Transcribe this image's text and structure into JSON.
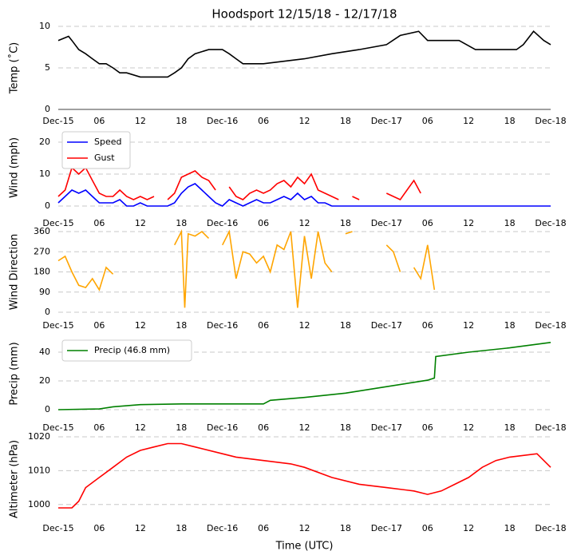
{
  "chart_data": [
    {
      "type": "line",
      "title": "Hoodsport 12/15/18 - 12/17/18",
      "ylabel": "Temp (˚C)",
      "xlim": [
        0,
        72
      ],
      "ylim": [
        0,
        10
      ],
      "yticks": [
        0,
        5,
        10
      ],
      "grid": true,
      "xticks": [
        {
          "value": 0,
          "label": "Dec-15"
        },
        {
          "value": 6,
          "label": "06"
        },
        {
          "value": 12,
          "label": "12"
        },
        {
          "value": 18,
          "label": "18"
        },
        {
          "value": 24,
          "label": "Dec-16"
        },
        {
          "value": 30,
          "label": "06"
        },
        {
          "value": 36,
          "label": "12"
        },
        {
          "value": 42,
          "label": "18"
        },
        {
          "value": 48,
          "label": "Dec-17"
        },
        {
          "value": 54,
          "label": "06"
        },
        {
          "value": 60,
          "label": "12"
        },
        {
          "value": 66,
          "label": "18"
        },
        {
          "value": 72,
          "label": "Dec-18"
        }
      ],
      "series": [
        {
          "name": "Temp",
          "color": "#000000",
          "x": [
            0,
            1.5,
            2,
            3,
            4,
            5,
            6,
            7,
            8,
            9,
            10,
            12,
            16,
            17,
            18,
            19,
            20,
            22,
            24,
            25,
            26,
            27,
            30,
            36,
            40,
            44,
            48,
            50,
            52.7,
            54,
            58.6,
            61,
            67,
            68,
            69.5,
            71,
            72
          ],
          "values": [
            8.3,
            8.8,
            8.3,
            7.2,
            6.7,
            6.1,
            5.5,
            5.5,
            5.0,
            4.4,
            4.4,
            3.9,
            3.9,
            4.4,
            5.0,
            6.1,
            6.7,
            7.2,
            7.2,
            6.7,
            6.1,
            5.5,
            5.5,
            6.1,
            6.7,
            7.2,
            7.8,
            8.9,
            9.4,
            8.3,
            8.3,
            7.2,
            7.2,
            7.8,
            9.4,
            8.3,
            7.8
          ]
        }
      ]
    },
    {
      "type": "line",
      "ylabel": "Wind (mph)",
      "legend": "upper left",
      "xlim": [
        0,
        72
      ],
      "ylim": [
        0,
        24
      ],
      "yticks": [
        0,
        10,
        20
      ],
      "grid": true,
      "xticks": [
        {
          "value": 0,
          "label": "Dec-15"
        },
        {
          "value": 6,
          "label": "06"
        },
        {
          "value": 12,
          "label": "12"
        },
        {
          "value": 18,
          "label": "18"
        },
        {
          "value": 24,
          "label": "Dec-16"
        },
        {
          "value": 30,
          "label": "06"
        },
        {
          "value": 36,
          "label": "12"
        },
        {
          "value": 42,
          "label": "18"
        },
        {
          "value": 48,
          "label": "Dec-17"
        },
        {
          "value": 54,
          "label": "06"
        },
        {
          "value": 60,
          "label": "12"
        },
        {
          "value": 66,
          "label": "18"
        },
        {
          "value": 72,
          "label": "Dec-18"
        }
      ],
      "series": [
        {
          "name": "Speed",
          "color": "#0000ff",
          "x": [
            0,
            1,
            2,
            3,
            4,
            5,
            6,
            7,
            8,
            9,
            10,
            11,
            12,
            13,
            14,
            15,
            16,
            17,
            18,
            19,
            20,
            21,
            22,
            23,
            24,
            25,
            26,
            27,
            28,
            29,
            30,
            31,
            32,
            33,
            34,
            35,
            36,
            37,
            38,
            39,
            40,
            41,
            48,
            56,
            64,
            72
          ],
          "values": [
            1,
            3,
            5,
            4,
            5,
            3,
            1,
            1,
            1,
            2,
            0,
            0,
            1,
            0,
            0,
            0,
            0,
            1,
            4,
            6,
            7,
            5,
            3,
            1,
            0,
            2,
            1,
            0,
            1,
            2,
            1,
            1,
            2,
            3,
            2,
            4,
            2,
            3,
            1,
            1,
            0,
            0,
            0,
            0,
            0,
            0
          ]
        },
        {
          "name": "Gust",
          "color": "#ff0000",
          "x": [
            0,
            1,
            2,
            3,
            4,
            5,
            6,
            7,
            8,
            9,
            10,
            11,
            12,
            13,
            14,
            15,
            16,
            17,
            18,
            19,
            20,
            21,
            22,
            23,
            24,
            25,
            26,
            27,
            28,
            29,
            30,
            31,
            32,
            33,
            34,
            35,
            36,
            37,
            38,
            39,
            40,
            41,
            42,
            43,
            44,
            45,
            46,
            47,
            48,
            49,
            50,
            51,
            52,
            53,
            54
          ],
          "values": [
            3,
            5,
            12,
            10,
            12,
            8,
            4,
            3,
            3,
            5,
            3,
            2,
            3,
            2,
            3,
            null,
            2,
            4,
            9,
            10,
            11,
            9,
            8,
            5,
            null,
            6,
            3,
            2,
            4,
            5,
            4,
            5,
            7,
            8,
            6,
            9,
            7,
            10,
            5,
            4,
            3,
            2,
            null,
            3,
            2,
            null,
            2,
            null,
            4,
            3,
            2,
            5,
            8,
            4,
            null
          ]
        }
      ]
    },
    {
      "type": "line",
      "ylabel": "Wind Direction",
      "xlim": [
        0,
        72
      ],
      "ylim": [
        0,
        360
      ],
      "yticks": [
        0,
        90,
        180,
        270,
        360
      ],
      "grid": true,
      "xticks": [
        {
          "value": 0,
          "label": "Dec-15"
        },
        {
          "value": 6,
          "label": "06"
        },
        {
          "value": 12,
          "label": "12"
        },
        {
          "value": 18,
          "label": "18"
        },
        {
          "value": 24,
          "label": "Dec-16"
        },
        {
          "value": 30,
          "label": "06"
        },
        {
          "value": 36,
          "label": "12"
        },
        {
          "value": 42,
          "label": "18"
        },
        {
          "value": 48,
          "label": "Dec-17"
        },
        {
          "value": 54,
          "label": "06"
        },
        {
          "value": 60,
          "label": "12"
        },
        {
          "value": 66,
          "label": "18"
        },
        {
          "value": 72,
          "label": "Dec-18"
        }
      ],
      "series": [
        {
          "name": "Direction",
          "color": "#ffa500",
          "x": [
            0,
            1,
            2,
            3,
            4,
            5,
            6,
            7,
            8,
            9,
            10,
            11,
            12,
            13,
            14,
            15,
            16,
            17,
            18,
            18.5,
            19,
            20,
            21,
            22,
            23,
            24,
            25,
            26,
            27,
            28,
            29,
            30,
            31,
            32,
            33,
            34,
            35,
            36,
            37,
            38,
            39,
            40,
            41,
            42,
            43,
            44,
            45,
            46,
            47,
            48,
            49,
            50,
            51,
            52,
            53,
            54,
            55,
            56
          ],
          "values": [
            230,
            250,
            180,
            120,
            110,
            150,
            100,
            200,
            170,
            null,
            190,
            null,
            150,
            null,
            null,
            290,
            null,
            300,
            360,
            20,
            350,
            340,
            360,
            330,
            null,
            300,
            360,
            150,
            270,
            260,
            220,
            250,
            180,
            300,
            280,
            360,
            20,
            340,
            150,
            360,
            220,
            180,
            null,
            350,
            360,
            null,
            120,
            null,
            null,
            300,
            270,
            180,
            null,
            200,
            150,
            300,
            100,
            null
          ]
        }
      ]
    },
    {
      "type": "line",
      "ylabel": "Precip (mm)",
      "legend": "upper left",
      "xlim": [
        0,
        72
      ],
      "ylim": [
        0,
        50
      ],
      "yticks": [
        0,
        20,
        40
      ],
      "grid": true,
      "xticks": [
        {
          "value": 0,
          "label": "Dec-15"
        },
        {
          "value": 6,
          "label": "06"
        },
        {
          "value": 12,
          "label": "12"
        },
        {
          "value": 18,
          "label": "18"
        },
        {
          "value": 24,
          "label": "Dec-16"
        },
        {
          "value": 30,
          "label": "06"
        },
        {
          "value": 36,
          "label": "12"
        },
        {
          "value": 42,
          "label": "18"
        },
        {
          "value": 48,
          "label": "Dec-17"
        },
        {
          "value": 54,
          "label": "06"
        },
        {
          "value": 60,
          "label": "12"
        },
        {
          "value": 66,
          "label": "18"
        },
        {
          "value": 72,
          "label": "Dec-18"
        }
      ],
      "series": [
        {
          "name": "Precip (46.8 mm)",
          "color": "#008000",
          "x": [
            0,
            6,
            8,
            12,
            18,
            24,
            30,
            31,
            36,
            42,
            48,
            54,
            55,
            55.2,
            60,
            66,
            72
          ],
          "values": [
            0,
            0.5,
            2,
            3.5,
            4,
            4,
            4,
            6.5,
            8.5,
            11.5,
            16,
            20.5,
            22,
            37,
            40,
            43,
            46.8
          ]
        }
      ]
    },
    {
      "type": "line",
      "ylabel": "Altimeter (hPa)",
      "xlabel": "Time (UTC)",
      "xlim": [
        0,
        72
      ],
      "ylim": [
        995,
        1020
      ],
      "yticks": [
        1000,
        1010,
        1020
      ],
      "grid": true,
      "xticks": [
        {
          "value": 0,
          "label": "Dec-15"
        },
        {
          "value": 6,
          "label": "06"
        },
        {
          "value": 12,
          "label": "12"
        },
        {
          "value": 18,
          "label": "18"
        },
        {
          "value": 24,
          "label": "Dec-16"
        },
        {
          "value": 30,
          "label": "06"
        },
        {
          "value": 36,
          "label": "12"
        },
        {
          "value": 42,
          "label": "18"
        },
        {
          "value": 48,
          "label": "Dec-17"
        },
        {
          "value": 54,
          "label": "06"
        },
        {
          "value": 60,
          "label": "12"
        },
        {
          "value": 66,
          "label": "18"
        },
        {
          "value": 72,
          "label": "Dec-18"
        }
      ],
      "series": [
        {
          "name": "Altimeter",
          "color": "#ff0000",
          "x": [
            0,
            2,
            3,
            4,
            6,
            8,
            10,
            12,
            14,
            16,
            18,
            20,
            24,
            26,
            30,
            34,
            36,
            40,
            44,
            48,
            52,
            54,
            56,
            58,
            60,
            62,
            64,
            66,
            70,
            72
          ],
          "values": [
            999,
            999,
            1001,
            1005,
            1008,
            1011,
            1014,
            1016,
            1017,
            1018,
            1018,
            1017,
            1015,
            1014,
            1013,
            1012,
            1011,
            1008,
            1006,
            1005,
            1004,
            1003,
            1004,
            1006,
            1008,
            1011,
            1013,
            1014,
            1015,
            1011
          ]
        }
      ]
    }
  ]
}
